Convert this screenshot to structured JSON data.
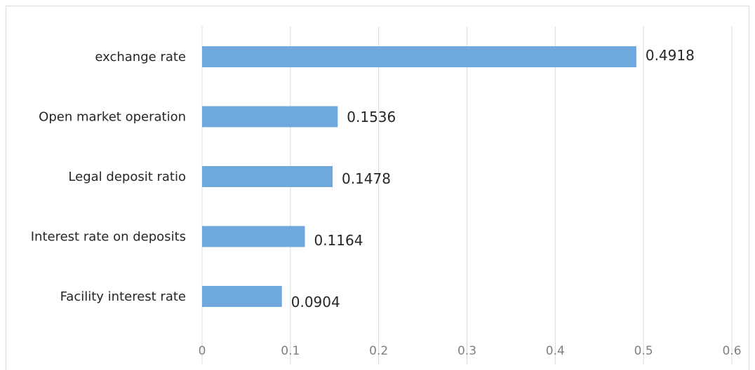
{
  "chart_data": {
    "type": "bar",
    "orientation": "horizontal",
    "categories": [
      "exchange rate",
      "Open market operation",
      "Legal deposit ratio ",
      "Interest rate on deposits",
      "Facility interest rate"
    ],
    "values": [
      0.4918,
      0.1536,
      0.1478,
      0.1164,
      0.0904
    ],
    "data_labels": [
      "0.4918",
      "0.1536",
      "0.1478",
      "0.1164",
      "0.0904"
    ],
    "xlim": [
      0,
      0.6
    ],
    "x_ticks": [
      0,
      0.1,
      0.2,
      0.3,
      0.4,
      0.5,
      0.6
    ],
    "x_tick_labels": [
      "0",
      "0.1",
      "0.2",
      "0.3",
      "0.4",
      "0.5",
      "0.6"
    ],
    "grid": true,
    "legend": "none",
    "bar_color": "#6fa8dc"
  }
}
